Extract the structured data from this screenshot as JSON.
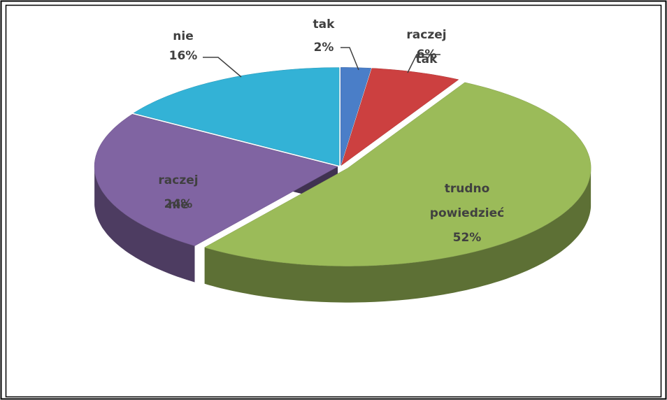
{
  "chart_data": {
    "type": "pie",
    "categories": [
      "tak",
      "raczej tak",
      "trudno powiedzieć",
      "raczej nie",
      "nie"
    ],
    "values": [
      2,
      6,
      52,
      24,
      16
    ],
    "value_labels": [
      "2%",
      "6%",
      "52%",
      "24%",
      "16%"
    ],
    "colors": [
      "#4a7ec8",
      "#cc4040",
      "#9bbb59",
      "#8064a2",
      "#33b2d6"
    ]
  }
}
